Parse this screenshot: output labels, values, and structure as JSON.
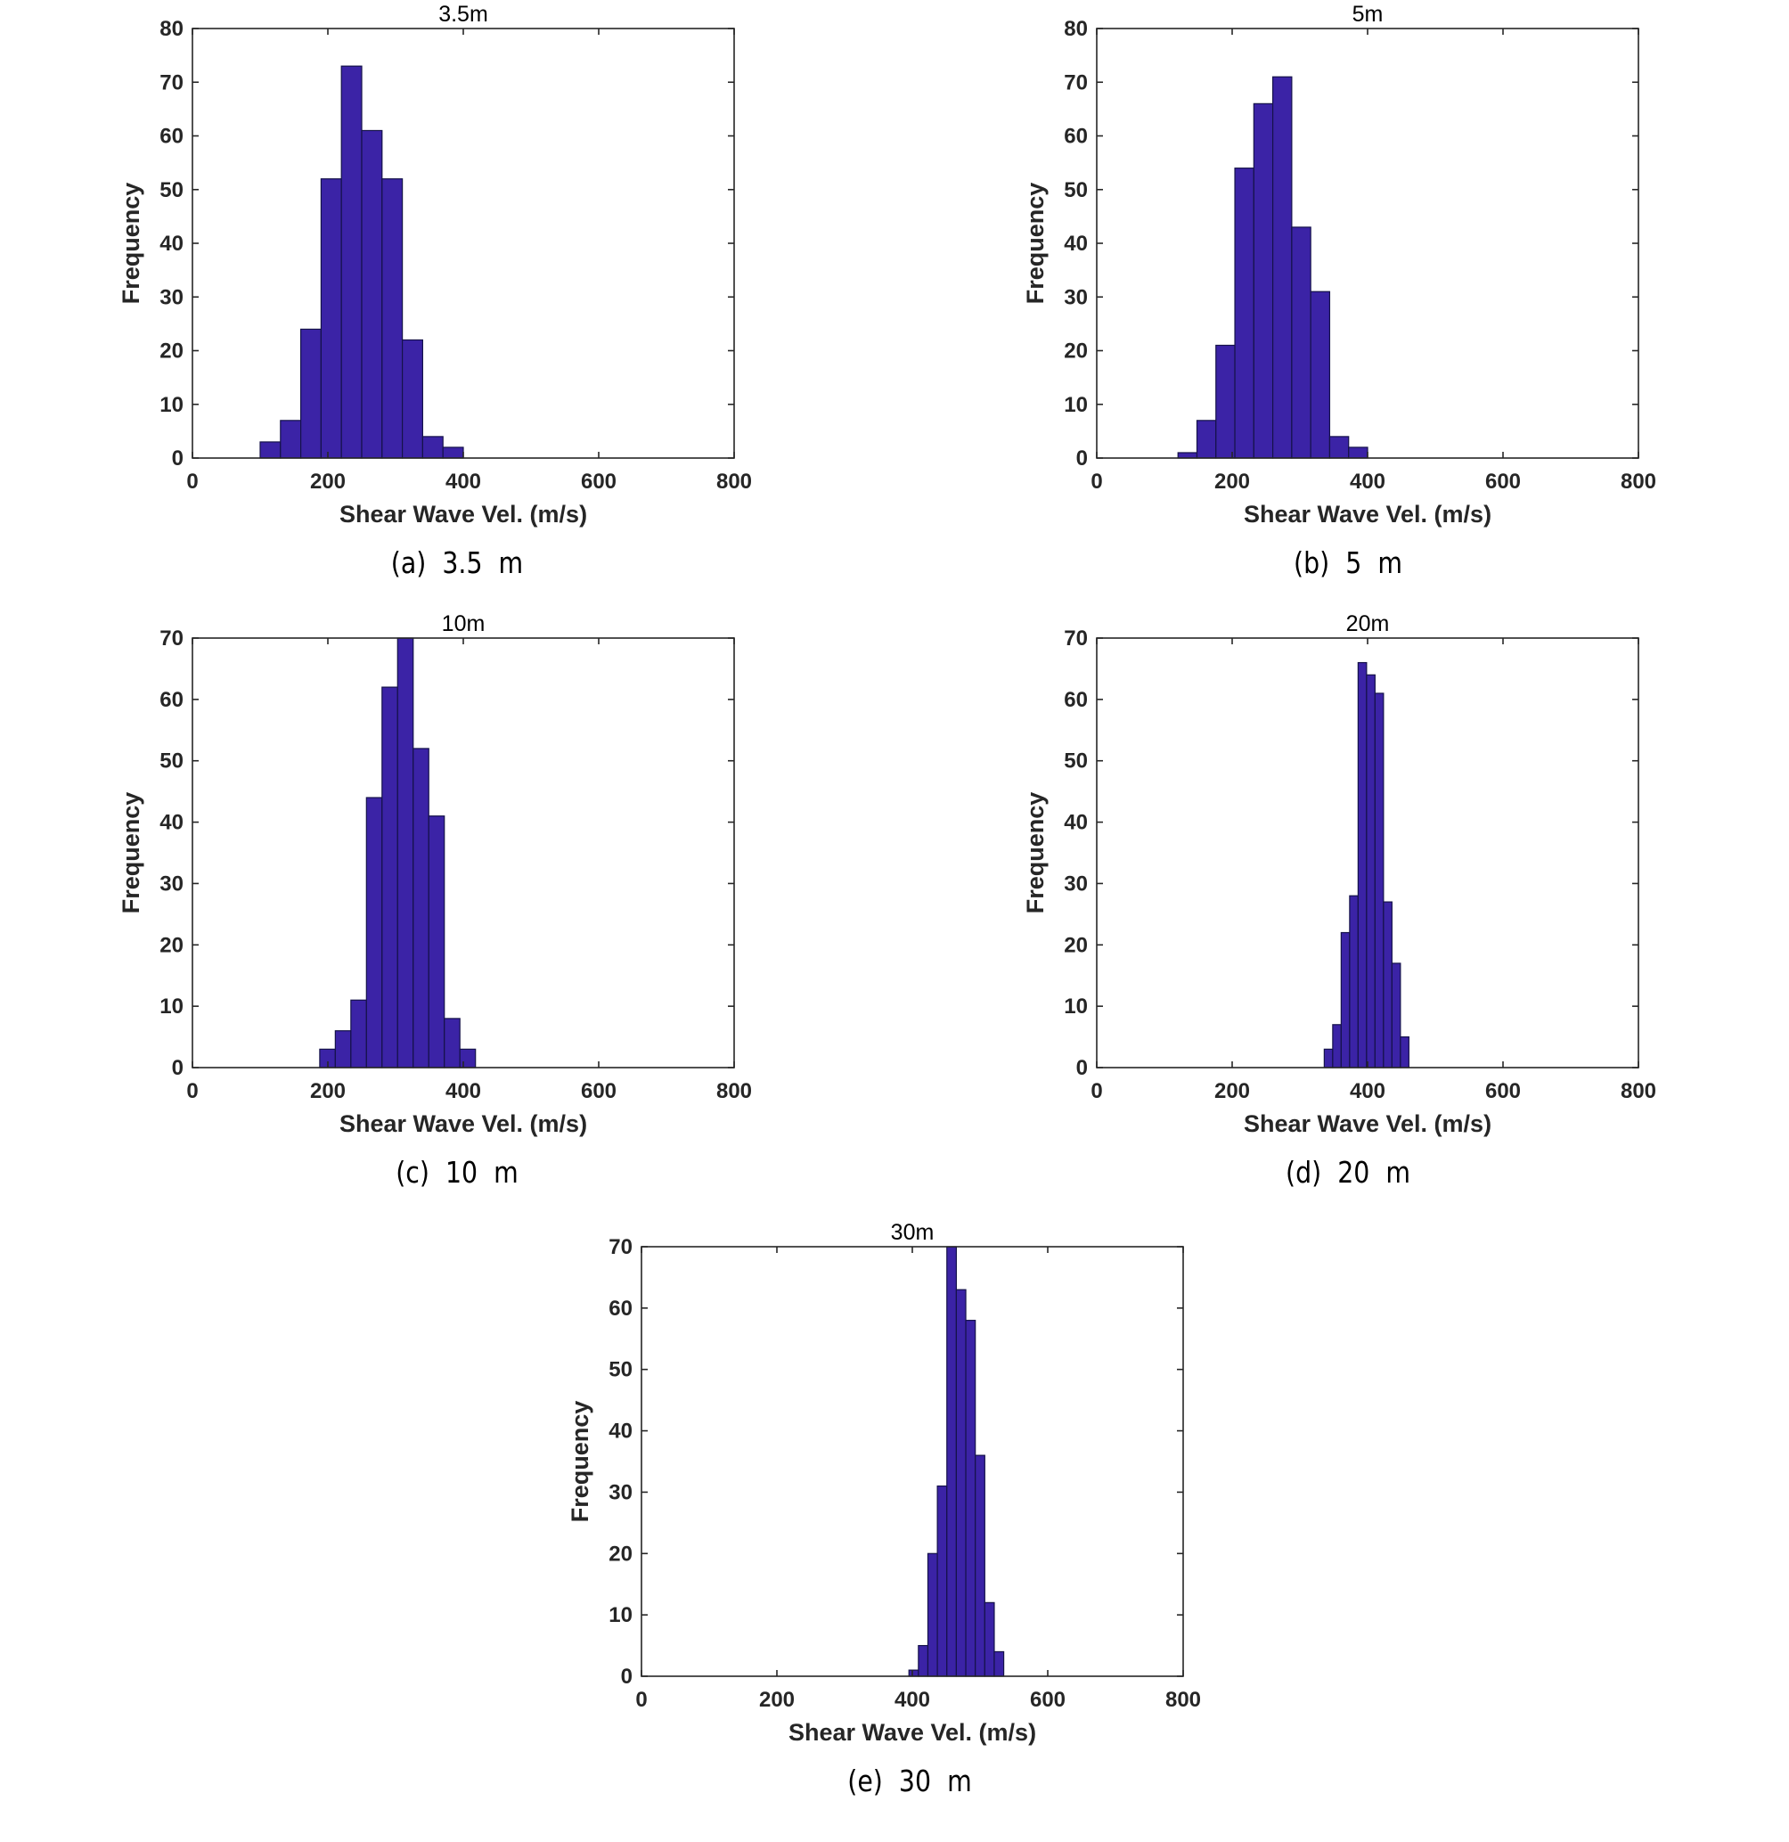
{
  "theme": {
    "bar_color": "#3b23a6",
    "bar_edge": "#15124a",
    "axis_color": "#262626"
  },
  "chart_data": [
    {
      "type": "bar",
      "title": "3.5m",
      "caption": "(a)  3.5  m",
      "xlabel": "Shear Wave Vel. (m/s)",
      "ylabel": "Frequency",
      "xlim": [
        0,
        800
      ],
      "ylim": [
        0,
        80
      ],
      "xticks": [
        0,
        200,
        400,
        600,
        800
      ],
      "yticks": [
        0,
        10,
        20,
        30,
        40,
        50,
        60,
        70,
        80
      ],
      "bin_edges": [
        100,
        130,
        160,
        190,
        220,
        250,
        280,
        310,
        340,
        370,
        400
      ],
      "values": [
        3,
        7,
        24,
        52,
        73,
        61,
        52,
        22,
        4,
        2
      ]
    },
    {
      "type": "bar",
      "title": "5m",
      "caption": "(b)  5  m",
      "xlabel": "Shear Wave Vel. (m/s)",
      "ylabel": "Frequency",
      "xlim": [
        0,
        800
      ],
      "ylim": [
        0,
        80
      ],
      "xticks": [
        0,
        200,
        400,
        600,
        800
      ],
      "yticks": [
        0,
        10,
        20,
        30,
        40,
        50,
        60,
        70,
        80
      ],
      "bin_edges": [
        120,
        148,
        176,
        204,
        232,
        260,
        288,
        316,
        344,
        372,
        400
      ],
      "values": [
        1,
        7,
        21,
        54,
        66,
        71,
        43,
        31,
        4,
        2
      ]
    },
    {
      "type": "bar",
      "title": "10m",
      "caption": "(c)  10  m",
      "xlabel": "Shear Wave Vel. (m/s)",
      "ylabel": "Frequency",
      "xlim": [
        0,
        800
      ],
      "ylim": [
        0,
        70
      ],
      "xticks": [
        0,
        200,
        400,
        600,
        800
      ],
      "yticks": [
        0,
        10,
        20,
        30,
        40,
        50,
        60,
        70
      ],
      "bin_edges": [
        188,
        211,
        234,
        257,
        280,
        303,
        326,
        349,
        372,
        395,
        418
      ],
      "values": [
        3,
        6,
        11,
        44,
        62,
        70,
        52,
        41,
        8,
        3
      ]
    },
    {
      "type": "bar",
      "title": "20m",
      "caption": "(d)  20  m",
      "xlabel": "Shear Wave Vel. (m/s)",
      "ylabel": "Frequency",
      "xlim": [
        0,
        800
      ],
      "ylim": [
        0,
        70
      ],
      "xticks": [
        0,
        200,
        400,
        600,
        800
      ],
      "yticks": [
        0,
        10,
        20,
        30,
        40,
        50,
        60,
        70
      ],
      "bin_edges": [
        336,
        348.5,
        361,
        373.5,
        386,
        398.5,
        411,
        423.5,
        436,
        448.5,
        461
      ],
      "values": [
        3,
        7,
        22,
        28,
        66,
        64,
        61,
        27,
        17,
        5
      ]
    },
    {
      "type": "bar",
      "title": "30m",
      "caption": "(e)  30  m",
      "xlabel": "Shear Wave Vel. (m/s)",
      "ylabel": "Frequency",
      "xlim": [
        0,
        800
      ],
      "ylim": [
        0,
        70
      ],
      "xticks": [
        0,
        200,
        400,
        600,
        800
      ],
      "yticks": [
        0,
        10,
        20,
        30,
        40,
        50,
        60,
        70
      ],
      "bin_edges": [
        395,
        409,
        423,
        437,
        451,
        465,
        479,
        493,
        507,
        521,
        535
      ],
      "values": [
        1,
        5,
        20,
        31,
        70,
        63,
        58,
        36,
        12,
        4
      ]
    }
  ]
}
